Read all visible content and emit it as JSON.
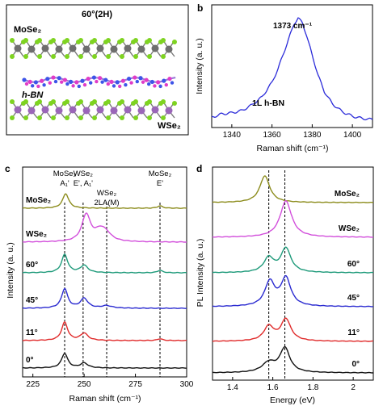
{
  "panels": {
    "a": {
      "letter": "a",
      "title": "60°(2H)",
      "layer_top": "MoSe₂",
      "layer_mid": "h-BN",
      "layer_bot": "WSe₂"
    },
    "b": {
      "letter": "b"
    },
    "c": {
      "letter": "c"
    },
    "d": {
      "letter": "d"
    }
  },
  "colors": {
    "frame": "#000000",
    "mose2_atom": "#6e6e6e",
    "wse2_atom": "#9a66b8",
    "se_atom": "#7ed321",
    "b_atom": "#e03cc8",
    "n_atom": "#3d54e8",
    "bond": "#7a7a7a"
  },
  "chart_data": [
    {
      "panel": "b",
      "type": "line",
      "xlabel": "Raman shift (cm⁻¹)",
      "ylabel": "Intensity (a. u.)",
      "xlim": [
        1330,
        1410
      ],
      "xticks": [
        1340,
        1360,
        1380,
        1400
      ],
      "peak_label": "1373 cm⁻¹",
      "annotation": "1L h-BN",
      "series": [
        {
          "color": "#2b2bd9",
          "x": [
            1330,
            1335,
            1340,
            1345,
            1350,
            1355,
            1360,
            1363,
            1366,
            1369,
            1371,
            1373,
            1375,
            1377,
            1380,
            1383,
            1386,
            1390,
            1395,
            1400,
            1405,
            1410
          ],
          "y": [
            0.09,
            0.12,
            0.13,
            0.15,
            0.2,
            0.27,
            0.4,
            0.52,
            0.67,
            0.82,
            0.92,
            0.97,
            0.93,
            0.83,
            0.64,
            0.46,
            0.32,
            0.21,
            0.14,
            0.1,
            0.08,
            0.07
          ]
        }
      ]
    },
    {
      "panel": "c",
      "type": "line",
      "xlabel": "Raman shift (cm⁻¹)",
      "ylabel": "Intensity (a. u.)",
      "xlim": [
        220,
        300
      ],
      "xticks": [
        225,
        250,
        275,
        300
      ],
      "reference_lines": [
        {
          "x": 240.5,
          "label": "MoSe₂ A₁'"
        },
        {
          "x": 249.5,
          "label": "WSe₂ E', A₁'"
        },
        {
          "x": 261,
          "label": "WSe₂ 2LA(M)"
        },
        {
          "x": 287,
          "label": "MoSe₂ E'"
        }
      ],
      "series": [
        {
          "name": "MoSe₂",
          "color": "#8c8c1c",
          "peaks": [
            [
              241,
              12,
              1.8
            ],
            [
              287,
              2,
              1.5
            ]
          ]
        },
        {
          "name": "WSe₂",
          "color": "#d24fdb",
          "peaks": [
            [
              251,
              22,
              2.5
            ],
            [
              258,
              9,
              3.5
            ],
            [
              261,
              4,
              3
            ]
          ]
        },
        {
          "name": "60°",
          "color": "#1e9a7a",
          "peaks": [
            [
              240.5,
              15,
              1.8
            ],
            [
              250,
              6,
              2.2
            ],
            [
              287,
              2,
              1.5
            ]
          ]
        },
        {
          "name": "45°",
          "color": "#2a2ad0",
          "peaks": [
            [
              240.5,
              16,
              1.8
            ],
            [
              250,
              8,
              2.2
            ],
            [
              261,
              2,
              3
            ]
          ]
        },
        {
          "name": "11°",
          "color": "#e02a2a",
          "peaks": [
            [
              240.5,
              15,
              1.8
            ],
            [
              250,
              6,
              2.2
            ],
            [
              287,
              1.5,
              1.5
            ]
          ]
        },
        {
          "name": "0°",
          "color": "#111111",
          "peaks": [
            [
              240.5,
              12,
              1.8
            ],
            [
              250,
              4,
              2.2
            ]
          ]
        }
      ]
    },
    {
      "panel": "d",
      "type": "line",
      "xlabel": "Energy (eV)",
      "ylabel": "PL Intensity (a. u.)",
      "xlim": [
        1.3,
        2.1
      ],
      "xticks": [
        1.4,
        1.6,
        1.8,
        2.0
      ],
      "reference_lines": [
        {
          "x": 1.58
        },
        {
          "x": 1.66
        }
      ],
      "series": [
        {
          "name": "MoSe₂",
          "color": "#8c8c1c",
          "peaks": [
            [
              1.56,
              22,
              0.03
            ]
          ]
        },
        {
          "name": "WSe₂",
          "color": "#d24fdb",
          "peaks": [
            [
              1.665,
              30,
              0.035
            ]
          ]
        },
        {
          "name": "60°",
          "color": "#1e9a7a",
          "peaks": [
            [
              1.58,
              12,
              0.03
            ],
            [
              1.665,
              20,
              0.03
            ]
          ]
        },
        {
          "name": "45°",
          "color": "#2a2ad0",
          "peaks": [
            [
              1.585,
              20,
              0.03
            ],
            [
              1.665,
              23,
              0.03
            ]
          ]
        },
        {
          "name": "11°",
          "color": "#e02a2a",
          "peaks": [
            [
              1.58,
              12,
              0.03
            ],
            [
              1.665,
              18,
              0.03
            ]
          ]
        },
        {
          "name": "0°",
          "color": "#111111",
          "peaks": [
            [
              1.58,
              8,
              0.04
            ],
            [
              1.66,
              20,
              0.03
            ]
          ]
        }
      ]
    }
  ]
}
